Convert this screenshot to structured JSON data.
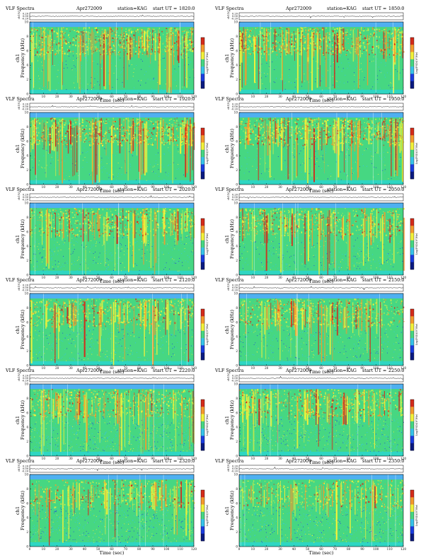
{
  "figure": {
    "header_left": "VLF Spectra",
    "date": "Apr272009",
    "station": "station=KAG",
    "start_prefix": "start  UT  ="
  },
  "axes": {
    "xlabel": "Time  (sec)",
    "ylabel_freq": "Frequency  (kHz)",
    "ylabel_channel": "ch1",
    "ylabel_wave": "ch1(V)",
    "colorbar_label": "Log(PSD)(V²/Hz)",
    "x_ticks": [
      "0",
      "10",
      "20",
      "30",
      "40",
      "50",
      "60",
      "70",
      "80",
      "90",
      "100",
      "110",
      "120"
    ],
    "y_ticks": [
      "0",
      "2",
      "4",
      "6",
      "8",
      "10"
    ],
    "wave_ticks": [
      "0.20",
      "0.00",
      "-0.20"
    ]
  },
  "palette": {
    "background": "#46d782",
    "lowband": "#2fd6c2",
    "cyan": "#36c4ea",
    "blue": "#1b3de0",
    "yellow": "#f2f23a",
    "orange": "#f59a2c",
    "red": "#d42a1a",
    "top_band": "#4fb0f0"
  },
  "chart_data": [
    {
      "type": "heatmap",
      "start_ut": "1820:0",
      "xlim": [
        0,
        120
      ],
      "ylim": [
        0,
        10
      ],
      "wave_ylim": [
        -0.2,
        0.2
      ],
      "band_top_khz": 9.3,
      "noise_floor": "low",
      "intensity": "high"
    },
    {
      "type": "heatmap",
      "start_ut": "1850:0",
      "xlim": [
        0,
        120
      ],
      "ylim": [
        0,
        10
      ],
      "wave_ylim": [
        -0.2,
        0.2
      ],
      "band_top_khz": 9.3,
      "noise_floor": "low",
      "intensity": "high"
    },
    {
      "type": "heatmap",
      "start_ut": "1920:0",
      "xlim": [
        0,
        120
      ],
      "ylim": [
        0,
        10
      ],
      "wave_ylim": [
        -0.2,
        0.2
      ],
      "band_top_khz": 9.3,
      "noise_floor": "low",
      "intensity": "high"
    },
    {
      "type": "heatmap",
      "start_ut": "1950:0",
      "xlim": [
        0,
        120
      ],
      "ylim": [
        0,
        10
      ],
      "wave_ylim": [
        -0.2,
        0.2
      ],
      "band_top_khz": 9.3,
      "noise_floor": "low",
      "intensity": "high"
    },
    {
      "type": "heatmap",
      "start_ut": "2020:0",
      "xlim": [
        0,
        120
      ],
      "ylim": [
        0,
        10
      ],
      "wave_ylim": [
        -0.2,
        0.2
      ],
      "band_top_khz": 9.3,
      "noise_floor": "medium",
      "intensity": "medium"
    },
    {
      "type": "heatmap",
      "start_ut": "2050:0",
      "xlim": [
        0,
        120
      ],
      "ylim": [
        0,
        10
      ],
      "wave_ylim": [
        -0.2,
        0.2
      ],
      "band_top_khz": 9.3,
      "noise_floor": "medium",
      "intensity": "medium"
    },
    {
      "type": "heatmap",
      "start_ut": "2120:0",
      "xlim": [
        0,
        120
      ],
      "ylim": [
        0,
        10
      ],
      "wave_ylim": [
        -0.2,
        0.2
      ],
      "band_top_khz": 9.3,
      "noise_floor": "medium",
      "intensity": "medium"
    },
    {
      "type": "heatmap",
      "start_ut": "2150:0",
      "xlim": [
        0,
        120
      ],
      "ylim": [
        0,
        10
      ],
      "wave_ylim": [
        -0.2,
        0.2
      ],
      "band_top_khz": 9.3,
      "noise_floor": "medium",
      "intensity": "medium"
    },
    {
      "type": "heatmap",
      "start_ut": "2220:0",
      "xlim": [
        0,
        120
      ],
      "ylim": [
        0,
        10
      ],
      "wave_ylim": [
        -0.2,
        0.2
      ],
      "band_top_khz": 9.3,
      "noise_floor": "high",
      "intensity": "medium"
    },
    {
      "type": "heatmap",
      "start_ut": "2250:0",
      "xlim": [
        0,
        120
      ],
      "ylim": [
        0,
        10
      ],
      "wave_ylim": [
        -0.2,
        0.2
      ],
      "band_top_khz": 9.3,
      "noise_floor": "high",
      "intensity": "medium"
    },
    {
      "type": "heatmap",
      "start_ut": "2320:0",
      "xlim": [
        0,
        120
      ],
      "ylim": [
        0,
        10
      ],
      "wave_ylim": [
        -0.2,
        0.2
      ],
      "band_top_khz": 9.3,
      "noise_floor": "high",
      "intensity": "low"
    },
    {
      "type": "heatmap",
      "start_ut": "2350:0",
      "xlim": [
        0,
        120
      ],
      "ylim": [
        0,
        10
      ],
      "wave_ylim": [
        -0.2,
        0.2
      ],
      "band_top_khz": 9.3,
      "noise_floor": "high",
      "intensity": "low"
    }
  ]
}
